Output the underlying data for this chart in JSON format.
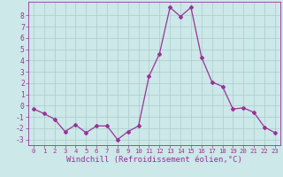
{
  "x": [
    0,
    1,
    2,
    3,
    4,
    5,
    6,
    7,
    8,
    9,
    10,
    11,
    12,
    13,
    14,
    15,
    16,
    17,
    18,
    19,
    20,
    21,
    22,
    23
  ],
  "y": [
    -0.3,
    -0.7,
    -1.2,
    -2.3,
    -1.7,
    -2.4,
    -1.8,
    -1.8,
    -3.0,
    -2.3,
    -1.8,
    2.6,
    4.6,
    8.7,
    7.9,
    8.7,
    4.3,
    2.1,
    1.7,
    -0.3,
    -0.2,
    -0.6,
    -1.9,
    -2.4
  ],
  "line_color": "#993399",
  "marker": "D",
  "marker_size": 2.0,
  "bg_color": "#cce8e8",
  "grid_color": "#aacccc",
  "xlabel": "Windchill (Refroidissement éolien,°C)",
  "xlim": [
    -0.5,
    23.5
  ],
  "ylim": [
    -3.5,
    9.2
  ],
  "yticks": [
    -3,
    -2,
    -1,
    0,
    1,
    2,
    3,
    4,
    5,
    6,
    7,
    8
  ],
  "xticks": [
    0,
    1,
    2,
    3,
    4,
    5,
    6,
    7,
    8,
    9,
    10,
    11,
    12,
    13,
    14,
    15,
    16,
    17,
    18,
    19,
    20,
    21,
    22,
    23
  ],
  "axis_color": "#993399",
  "tick_color": "#993399",
  "xlabel_fontsize": 6.5,
  "tick_fontsize_x": 5.2,
  "tick_fontsize_y": 5.8
}
